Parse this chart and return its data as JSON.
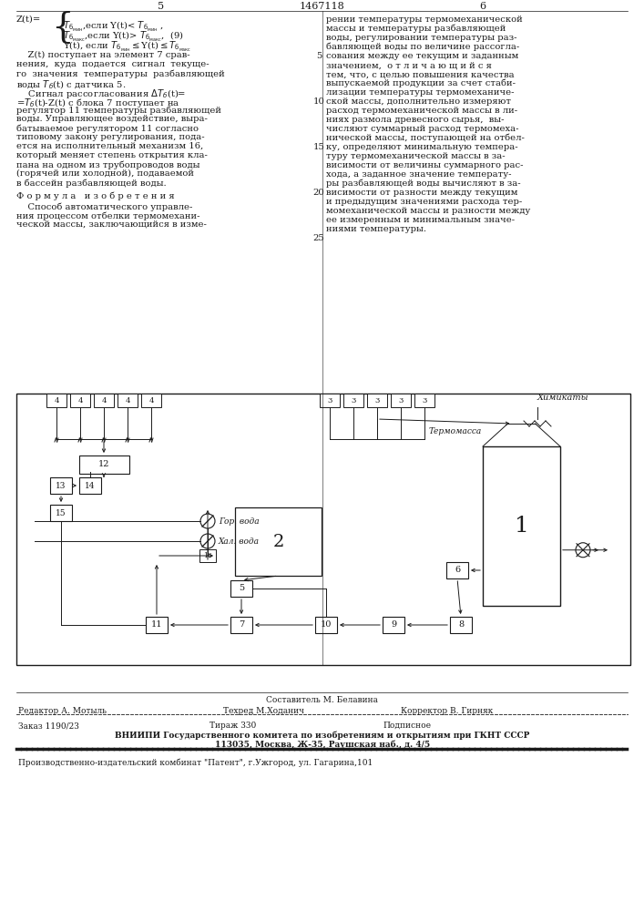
{
  "page_num_left": "5",
  "page_num_center": "1467118",
  "page_num_right": "6",
  "bg_color": "#ffffff",
  "text_color": "#1a1a1a",
  "footer_sestavitel": "Составитель М. Белавина",
  "footer_redaktor": "Редактор А. Мотыль",
  "footer_tekhred": "Техред М.Ходанич",
  "footer_korrektor": "Корректор В. Гирняк",
  "footer_zakaz": "Заказ 1190/23",
  "footer_tirazh": "Тираж 330",
  "footer_podpisnoe": "Подписное",
  "footer_vniiipi": "ВНИИПИ Государственного комитета по изобретениям и открытиям при ГКНТ СССР",
  "footer_address": "113035, Москва, Ж-35, Раушская наб., д. 4/5",
  "footer_kombinat": "Производственно-издательский комбинат \"Патент\", г.Ужгород, ул. Гагарина,101"
}
